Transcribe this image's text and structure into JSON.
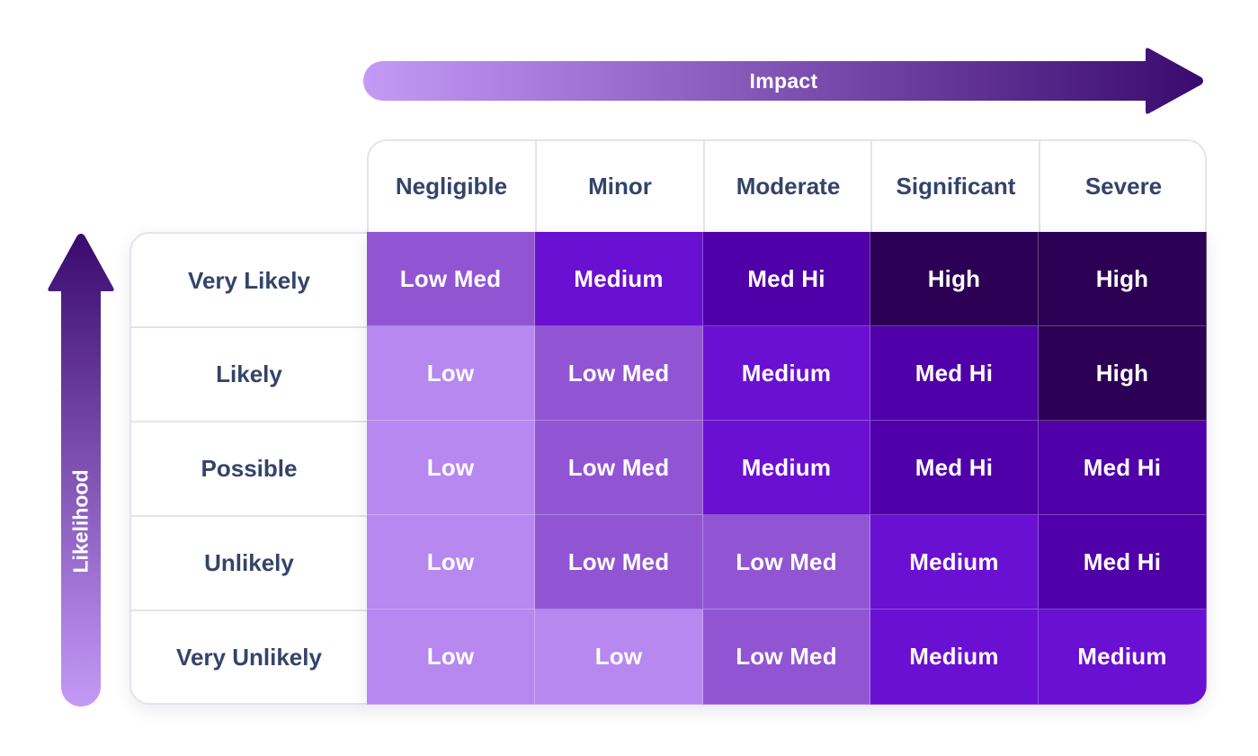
{
  "impact_label": "Impact",
  "likelihood_label": "Likelihood",
  "impact_levels": [
    "Negligible",
    "Minor",
    "Moderate",
    "Significant",
    "Severe"
  ],
  "likelihood_levels": [
    "Very Likely",
    "Likely",
    "Possible",
    "Unlikely",
    "Very Unlikely"
  ],
  "matrix": [
    [
      "Low Med",
      "Medium",
      "Med Hi",
      "High",
      "High"
    ],
    [
      "Low",
      "Low Med",
      "Medium",
      "Med Hi",
      "High"
    ],
    [
      "Low",
      "Low Med",
      "Medium",
      "Med Hi",
      "Med Hi"
    ],
    [
      "Low",
      "Low Med",
      "Low Med",
      "Medium",
      "Med Hi"
    ],
    [
      "Low",
      "Low",
      "Low Med",
      "Medium",
      "Medium"
    ]
  ],
  "level_colors": {
    "Low": "#b788f0",
    "Low Med": "#9155d4",
    "Medium": "#6a10d2",
    "Med Hi": "#5000a8",
    "High": "#2c0054"
  },
  "arrow_gradient": {
    "start": "#c49af7",
    "end": "#3a0a6e"
  }
}
